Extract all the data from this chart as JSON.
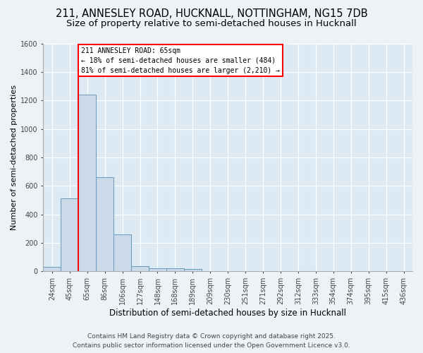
{
  "title": "211, ANNESLEY ROAD, HUCKNALL, NOTTINGHAM, NG15 7DB",
  "subtitle": "Size of property relative to semi-detached houses in Hucknall",
  "xlabel": "Distribution of semi-detached houses by size in Hucknall",
  "ylabel": "Number of semi-detached properties",
  "bar_values": [
    30,
    510,
    1240,
    660,
    260,
    35,
    20,
    20,
    15,
    0,
    0,
    0,
    0,
    0,
    0,
    0,
    0,
    0,
    0,
    0,
    0
  ],
  "bar_labels": [
    "24sqm",
    "45sqm",
    "65sqm",
    "86sqm",
    "106sqm",
    "127sqm",
    "148sqm",
    "168sqm",
    "189sqm",
    "209sqm",
    "230sqm",
    "251sqm",
    "271sqm",
    "292sqm",
    "312sqm",
    "333sqm",
    "354sqm",
    "374sqm",
    "395sqm",
    "415sqm",
    "436sqm"
  ],
  "bar_color": "#ccd9e8",
  "bar_edge_color": "#6699bb",
  "red_line_bin": 2,
  "ylim": [
    0,
    1600
  ],
  "yticks": [
    0,
    200,
    400,
    600,
    800,
    1000,
    1200,
    1400,
    1600
  ],
  "annotation_title": "211 ANNESLEY ROAD: 65sqm",
  "annotation_line1": "← 18% of semi-detached houses are smaller (484)",
  "annotation_line2": "81% of semi-detached houses are larger (2,210) →",
  "footer_line1": "Contains HM Land Registry data © Crown copyright and database right 2025.",
  "footer_line2": "Contains public sector information licensed under the Open Government Licence v3.0.",
  "bg_color": "#edf2f7",
  "plot_bg_color": "#ddeaf4",
  "grid_color": "#ffffff",
  "title_fontsize": 10.5,
  "subtitle_fontsize": 9.5,
  "ylabel_fontsize": 8,
  "xlabel_fontsize": 8.5,
  "tick_fontsize": 7,
  "footer_fontsize": 6.5
}
